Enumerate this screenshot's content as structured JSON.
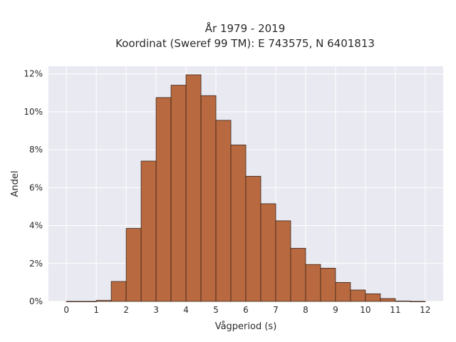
{
  "chart_data": {
    "type": "bar",
    "title_line1": "År 1979 - 2019",
    "title_line2": "Koordinat (Sweref 99 TM): E 743575, N 6401813",
    "xlabel": "Vågperiod (s)",
    "ylabel": "Andel",
    "bin_width": 0.5,
    "bin_starts": [
      0,
      0.5,
      1,
      1.5,
      2,
      2.5,
      3,
      3.5,
      4,
      4.5,
      5,
      5.5,
      6,
      6.5,
      7,
      7.5,
      8,
      8.5,
      9,
      9.5,
      10,
      10.5,
      11,
      11.5
    ],
    "values": [
      0.0,
      0.0,
      0.05,
      1.05,
      3.85,
      7.4,
      10.75,
      11.4,
      11.95,
      10.85,
      9.55,
      8.25,
      6.6,
      5.15,
      4.25,
      2.8,
      1.95,
      1.75,
      1.0,
      0.6,
      0.4,
      0.15,
      0.02,
      0.0
    ],
    "xlim": [
      -0.6,
      12.6
    ],
    "ylim": [
      0,
      12.4
    ],
    "x_ticks": [
      0,
      1,
      2,
      3,
      4,
      5,
      6,
      7,
      8,
      9,
      10,
      11,
      12
    ],
    "y_ticks": [
      0,
      2,
      4,
      6,
      8,
      10,
      12
    ],
    "y_tick_labels": [
      "0%",
      "2%",
      "4%",
      "6%",
      "8%",
      "10%",
      "12%"
    ],
    "bar_color": "#b8693f",
    "bar_edge_color": "#3a2418",
    "background_color": "#e9e9f1",
    "grid": true
  }
}
